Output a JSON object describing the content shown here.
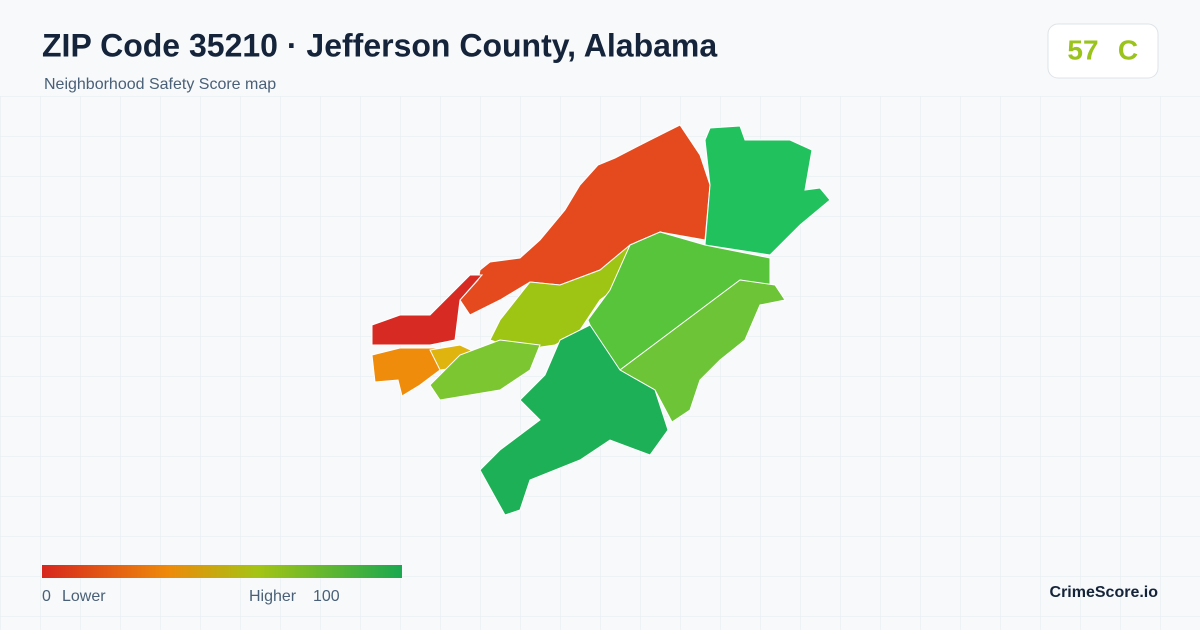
{
  "header": {
    "title": "ZIP Code 35210 · Jefferson County, Alabama",
    "subtitle": "Neighborhood Safety Score map"
  },
  "score": {
    "value": 57,
    "grade": "C"
  },
  "legend": {
    "min": 0,
    "min_label": "Lower",
    "max_label": "Higher",
    "max": 100
  },
  "brand": "CrimeScore.io"
}
